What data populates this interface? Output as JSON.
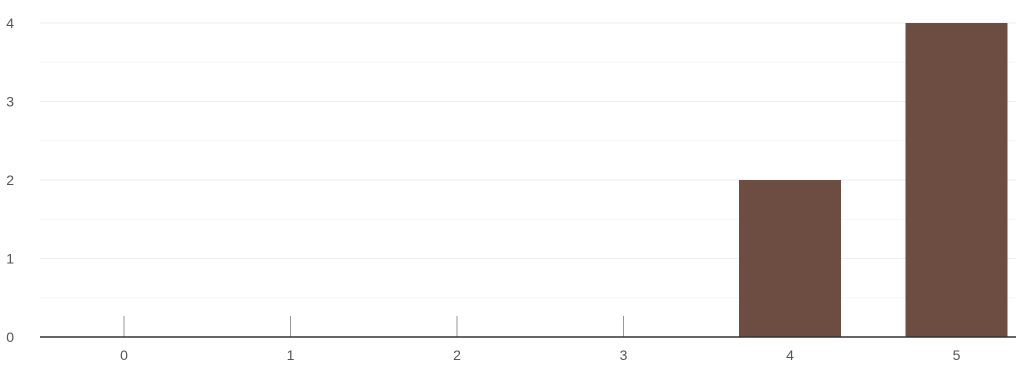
{
  "chart_data": {
    "type": "bar",
    "categories": [
      "0",
      "1",
      "2",
      "3",
      "4",
      "5"
    ],
    "values": [
      0,
      0,
      0,
      0,
      2,
      4
    ],
    "y_ticks": [
      "0",
      "1",
      "2",
      "3",
      "4"
    ],
    "ylim": [
      0,
      4
    ],
    "grid": true,
    "minor_grid": true,
    "bar_color": "#6d4c41",
    "grid_color": "#eeeeee",
    "minor_grid_color": "#f5f5f5",
    "axis_color": "#333333",
    "tick_mark_color": "#999999",
    "label_color": "#555555"
  }
}
